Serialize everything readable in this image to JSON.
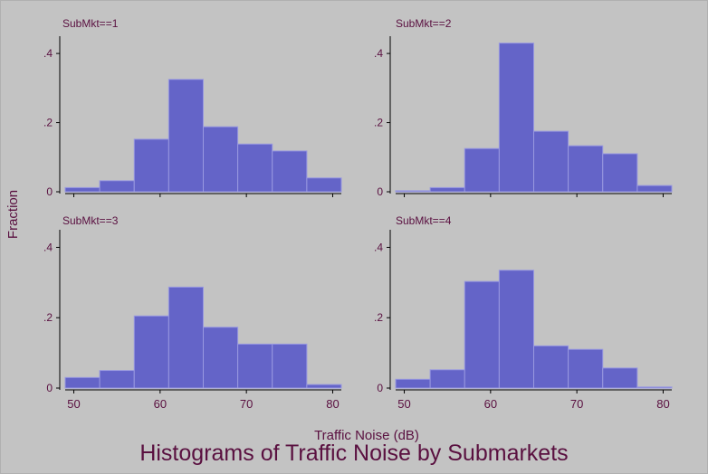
{
  "figure": {
    "title": "Histograms of Traffic Noise by Submarkets",
    "xlabel": "Traffic Noise (dB)",
    "ylabel": "Fraction",
    "colors": {
      "background": "#c3c3c3",
      "bar_fill": "#6464c8",
      "bar_edge": "#9898e0",
      "axis": "#000000",
      "text": "#5a1040"
    }
  },
  "chart_data": [
    {
      "type": "bar",
      "title": "SubMkt==1",
      "bin_edges": [
        49,
        53,
        57,
        61,
        65,
        69,
        73,
        77,
        81
      ],
      "values": [
        0.012,
        0.032,
        0.152,
        0.325,
        0.188,
        0.138,
        0.118,
        0.04
      ],
      "xticks": [
        50,
        60,
        70,
        80
      ],
      "yticks": [
        0,
        0.2,
        0.4
      ],
      "ytick_labels": [
        "0",
        ".2",
        ".4"
      ],
      "xlim": [
        49,
        81
      ],
      "ylim": [
        0,
        0.45
      ]
    },
    {
      "type": "bar",
      "title": "SubMkt==2",
      "bin_edges": [
        49,
        53,
        57,
        61,
        65,
        69,
        73,
        77,
        81
      ],
      "values": [
        0.003,
        0.012,
        0.125,
        0.43,
        0.175,
        0.133,
        0.11,
        0.018
      ],
      "xticks": [
        50,
        60,
        70,
        80
      ],
      "yticks": [
        0,
        0.2,
        0.4
      ],
      "ytick_labels": [
        "0",
        ".2",
        ".4"
      ],
      "xlim": [
        49,
        81
      ],
      "ylim": [
        0,
        0.45
      ]
    },
    {
      "type": "bar",
      "title": "SubMkt==3",
      "bin_edges": [
        49,
        53,
        57,
        61,
        65,
        69,
        73,
        77,
        81
      ],
      "values": [
        0.03,
        0.05,
        0.205,
        0.287,
        0.173,
        0.125,
        0.125,
        0.01
      ],
      "xticks": [
        50,
        60,
        70,
        80
      ],
      "yticks": [
        0,
        0.2,
        0.4
      ],
      "ytick_labels": [
        "0",
        ".2",
        ".4"
      ],
      "xlim": [
        49,
        81
      ],
      "ylim": [
        0,
        0.45
      ]
    },
    {
      "type": "bar",
      "title": "SubMkt==4",
      "bin_edges": [
        49,
        53,
        57,
        61,
        65,
        69,
        73,
        77,
        81
      ],
      "values": [
        0.025,
        0.052,
        0.303,
        0.335,
        0.12,
        0.11,
        0.057,
        0.003
      ],
      "xticks": [
        50,
        60,
        70,
        80
      ],
      "yticks": [
        0,
        0.2,
        0.4
      ],
      "ytick_labels": [
        "0",
        ".2",
        ".4"
      ],
      "xlim": [
        49,
        81
      ],
      "ylim": [
        0,
        0.45
      ]
    }
  ]
}
